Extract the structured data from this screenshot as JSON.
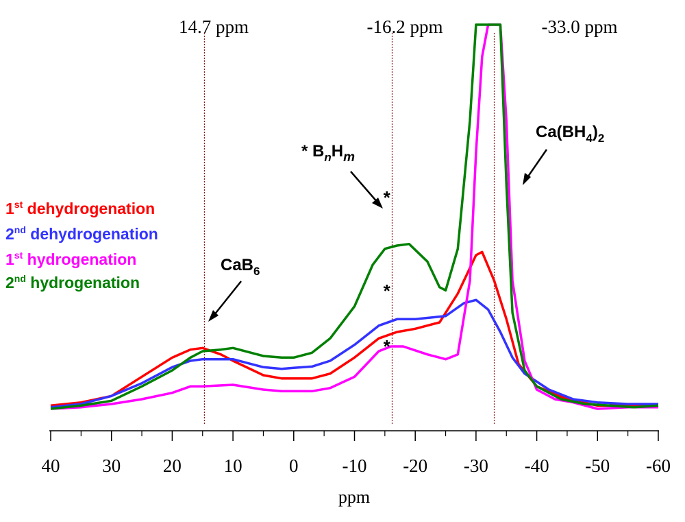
{
  "chart_data": {
    "type": "line",
    "xlabel": "ppm",
    "xlim": [
      40,
      -60
    ],
    "ylim": [
      0,
      120
    ],
    "xticks": [
      "40",
      "30",
      "20",
      "10",
      "0",
      "-10",
      "-20",
      "-30",
      "-40",
      "-50",
      "-60"
    ],
    "xtick_values": [
      40,
      30,
      20,
      10,
      0,
      -10,
      -20,
      -30,
      -40,
      -50,
      -60
    ],
    "reference_lines": [
      {
        "ppm": 14.7,
        "label": "14.7 ppm"
      },
      {
        "ppm": -16.2,
        "label": "-16.2 ppm"
      },
      {
        "ppm": -33.0,
        "label": "-33.0 ppm"
      }
    ],
    "annotations": {
      "cab6": {
        "base": "CaB",
        "sub": "6",
        "points_to_ppm": 15
      },
      "bnhm": {
        "star": "* ",
        "b": "B",
        "n": "n",
        "h": "H",
        "m": "m",
        "points_to_ppm": -15
      },
      "cabh4": {
        "pre": "Ca(BH",
        "sub": "4",
        "post": ")",
        "sub2": "2",
        "points_to_ppm": -37
      }
    },
    "star_markers": [
      {
        "text": "*",
        "ppm": -16,
        "series": "2nd dehydrogenation"
      },
      {
        "text": "*",
        "ppm": -16,
        "series": "1st hydrogenation"
      },
      {
        "text": "*",
        "ppm": -16,
        "series": "2nd hydrogenation"
      }
    ],
    "series": [
      {
        "name": "1st dehydrogenation",
        "color": "#ff0000",
        "points": [
          [
            40,
            1
          ],
          [
            35,
            2
          ],
          [
            30,
            4
          ],
          [
            25,
            10
          ],
          [
            20,
            16
          ],
          [
            17,
            18.5
          ],
          [
            15,
            19
          ],
          [
            12,
            17
          ],
          [
            10,
            15
          ],
          [
            5,
            10.5
          ],
          [
            2,
            9.5
          ],
          [
            0,
            9.5
          ],
          [
            -3,
            9.5
          ],
          [
            -6,
            11
          ],
          [
            -10,
            16
          ],
          [
            -14,
            22
          ],
          [
            -17,
            24
          ],
          [
            -20,
            25
          ],
          [
            -24,
            27
          ],
          [
            -27,
            36
          ],
          [
            -30,
            48
          ],
          [
            -31,
            49
          ],
          [
            -33,
            40
          ],
          [
            -35,
            28
          ],
          [
            -37,
            14
          ],
          [
            -40,
            7
          ],
          [
            -45,
            3
          ],
          [
            -50,
            1
          ],
          [
            -55,
            1
          ],
          [
            -60,
            1
          ]
        ]
      },
      {
        "name": "2nd dehydrogenation",
        "color": "#3333ff",
        "points": [
          [
            40,
            0.5
          ],
          [
            35,
            1.5
          ],
          [
            30,
            4
          ],
          [
            25,
            8
          ],
          [
            20,
            13
          ],
          [
            17,
            15
          ],
          [
            15,
            15.5
          ],
          [
            10,
            15.5
          ],
          [
            7,
            14
          ],
          [
            5,
            13
          ],
          [
            2,
            12.5
          ],
          [
            0,
            12.8
          ],
          [
            -3,
            13.2
          ],
          [
            -6,
            15
          ],
          [
            -10,
            20
          ],
          [
            -14,
            26
          ],
          [
            -17,
            28
          ],
          [
            -20,
            28
          ],
          [
            -25,
            29
          ],
          [
            -28,
            33
          ],
          [
            -30,
            34
          ],
          [
            -32,
            31
          ],
          [
            -34,
            24
          ],
          [
            -36,
            16
          ],
          [
            -38,
            11
          ],
          [
            -42,
            6
          ],
          [
            -46,
            3
          ],
          [
            -50,
            2
          ],
          [
            -55,
            1.5
          ],
          [
            -60,
            1.5
          ]
        ]
      },
      {
        "name": "1st hydrogenation",
        "color": "#ff00ff",
        "points": [
          [
            40,
            0
          ],
          [
            35,
            0.5
          ],
          [
            30,
            1.5
          ],
          [
            25,
            3
          ],
          [
            20,
            5
          ],
          [
            17,
            7
          ],
          [
            15,
            7
          ],
          [
            10,
            7.5
          ],
          [
            5,
            6
          ],
          [
            2,
            5.5
          ],
          [
            0,
            5.5
          ],
          [
            -3,
            5.5
          ],
          [
            -6,
            6.5
          ],
          [
            -10,
            10
          ],
          [
            -14,
            18
          ],
          [
            -16,
            19.5
          ],
          [
            -18,
            19.5
          ],
          [
            -22,
            17
          ],
          [
            -25,
            15.5
          ],
          [
            -27,
            17
          ],
          [
            -29,
            40
          ],
          [
            -30,
            80
          ],
          [
            -31,
            110
          ],
          [
            -32,
            120
          ],
          [
            -34,
            120
          ],
          [
            -35,
            90
          ],
          [
            -36,
            40
          ],
          [
            -38,
            15
          ],
          [
            -40,
            6
          ],
          [
            -43,
            3
          ],
          [
            -46,
            2
          ],
          [
            -50,
            0
          ],
          [
            -55,
            0.5
          ],
          [
            -60,
            0.5
          ]
        ]
      },
      {
        "name": "2nd hydrogenation",
        "color": "#008000",
        "points": [
          [
            40,
            0
          ],
          [
            35,
            1
          ],
          [
            30,
            2.5
          ],
          [
            25,
            7
          ],
          [
            20,
            12
          ],
          [
            17,
            16
          ],
          [
            15,
            18
          ],
          [
            12,
            18.5
          ],
          [
            10,
            19
          ],
          [
            7,
            17.5
          ],
          [
            5,
            16.5
          ],
          [
            2,
            16
          ],
          [
            0,
            16
          ],
          [
            -3,
            17.5
          ],
          [
            -6,
            22
          ],
          [
            -10,
            32
          ],
          [
            -13,
            45
          ],
          [
            -15,
            50
          ],
          [
            -17,
            51
          ],
          [
            -19,
            51.5
          ],
          [
            -22,
            46
          ],
          [
            -24,
            38
          ],
          [
            -25,
            37
          ],
          [
            -27,
            50
          ],
          [
            -29,
            90
          ],
          [
            -30,
            120
          ],
          [
            -34,
            120
          ],
          [
            -35,
            70
          ],
          [
            -36,
            30
          ],
          [
            -38,
            12
          ],
          [
            -40,
            7
          ],
          [
            -44,
            3
          ],
          [
            -48,
            1.5
          ],
          [
            -52,
            1
          ],
          [
            -56,
            0.5
          ],
          [
            -60,
            1
          ]
        ]
      }
    ]
  }
}
